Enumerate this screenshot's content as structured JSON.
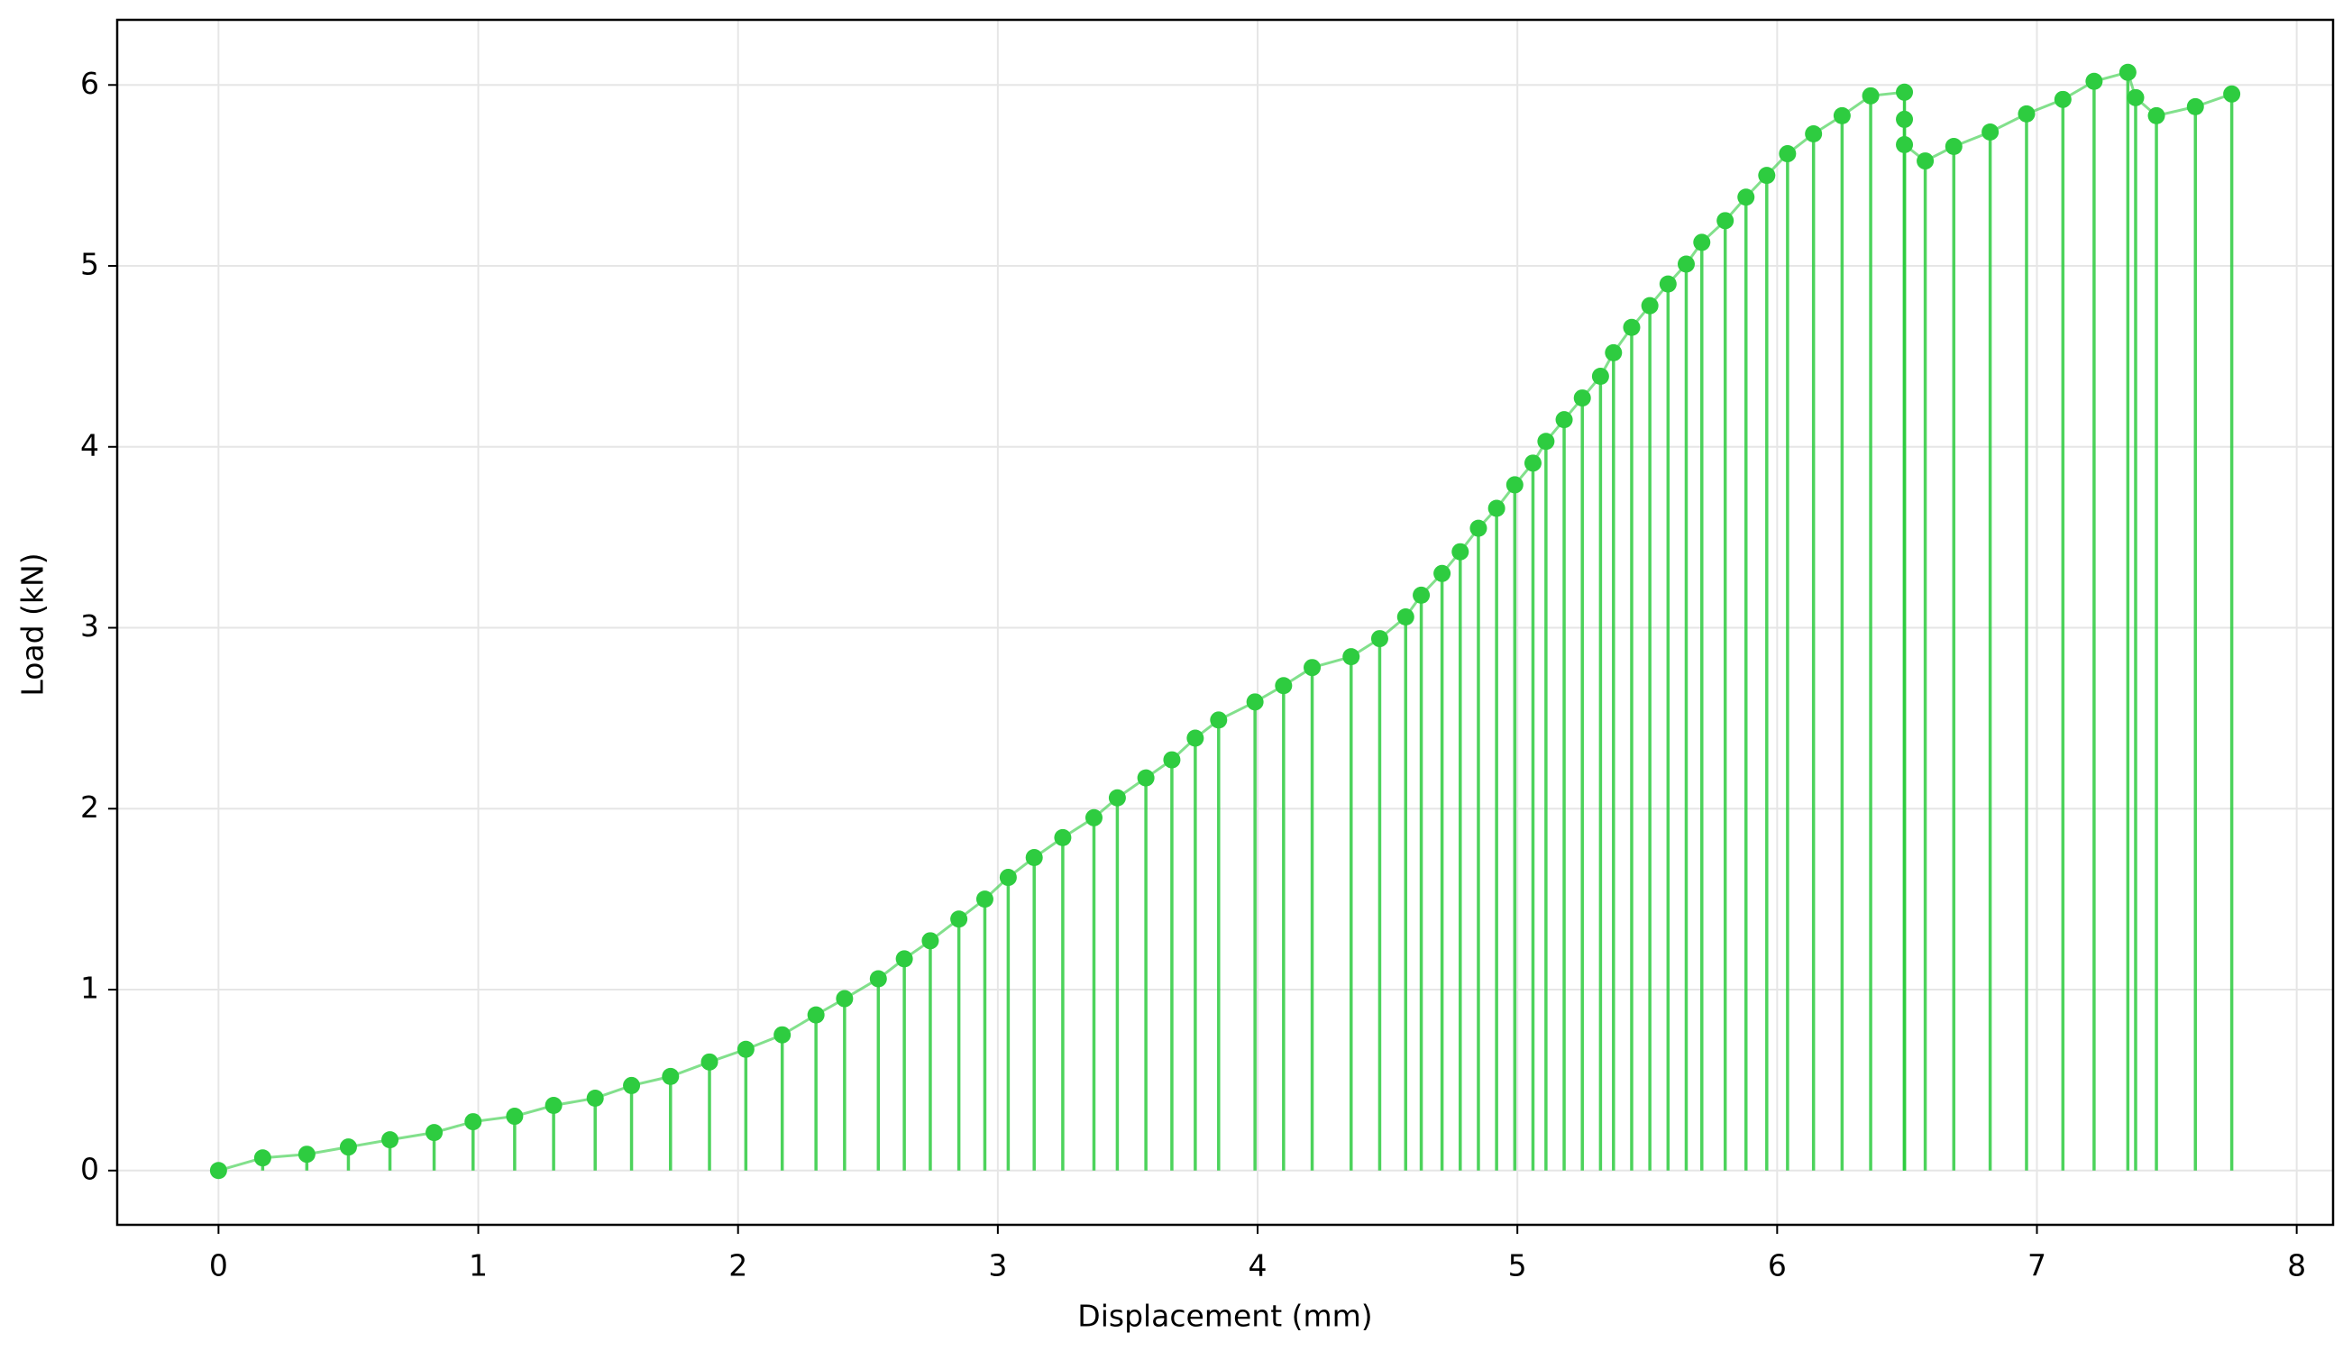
{
  "chart_data": {
    "type": "stem",
    "xlabel": "Displacement (mm)",
    "ylabel": "Load (kN)",
    "color": "#2ecc40",
    "grid": true,
    "xlim": [
      -0.39,
      8.14
    ],
    "ylim": [
      -0.3,
      6.36
    ],
    "xticks": [
      0,
      1,
      2,
      3,
      4,
      5,
      6,
      7,
      8
    ],
    "yticks": [
      0,
      1,
      2,
      3,
      4,
      5,
      6
    ],
    "x": [
      0,
      0.17,
      0.34,
      0.5,
      0.66,
      0.83,
      0.98,
      1.14,
      1.29,
      1.45,
      1.59,
      1.74,
      1.89,
      2.03,
      2.17,
      2.3,
      2.41,
      2.54,
      2.64,
      2.74,
      2.85,
      2.95,
      3.04,
      3.14,
      3.25,
      3.37,
      3.46,
      3.57,
      3.67,
      3.76,
      3.85,
      3.99,
      4.1,
      4.21,
      4.36,
      4.47,
      4.57,
      4.63,
      4.71,
      4.78,
      4.85,
      4.92,
      4.99,
      5.06,
      5.11,
      5.18,
      5.25,
      5.32,
      5.37,
      5.44,
      5.51,
      5.58,
      5.65,
      5.71,
      5.8,
      5.88,
      5.96,
      6.04,
      6.14,
      6.25,
      6.36,
      6.49,
      6.49,
      6.49,
      6.57,
      6.68,
      6.82,
      6.96,
      7.1,
      7.22,
      7.35,
      7.38,
      7.46,
      7.61,
      7.75
    ],
    "y": [
      0,
      0.07,
      0.09,
      0.13,
      0.17,
      0.21,
      0.27,
      0.3,
      0.36,
      0.4,
      0.47,
      0.52,
      0.6,
      0.67,
      0.75,
      0.86,
      0.95,
      1.06,
      1.17,
      1.27,
      1.39,
      1.5,
      1.62,
      1.73,
      1.84,
      1.95,
      2.06,
      2.17,
      2.27,
      2.39,
      2.49,
      2.59,
      2.68,
      2.78,
      2.84,
      2.94,
      3.06,
      3.18,
      3.3,
      3.42,
      3.55,
      3.66,
      3.79,
      3.91,
      4.03,
      4.15,
      4.27,
      4.39,
      4.52,
      4.66,
      4.78,
      4.9,
      5.01,
      5.13,
      5.25,
      5.38,
      5.5,
      5.62,
      5.73,
      5.83,
      5.94,
      5.96,
      5.81,
      5.67,
      5.58,
      5.66,
      5.74,
      5.84,
      5.92,
      6.02,
      6.07,
      5.93,
      5.83,
      5.88,
      5.95
    ]
  }
}
